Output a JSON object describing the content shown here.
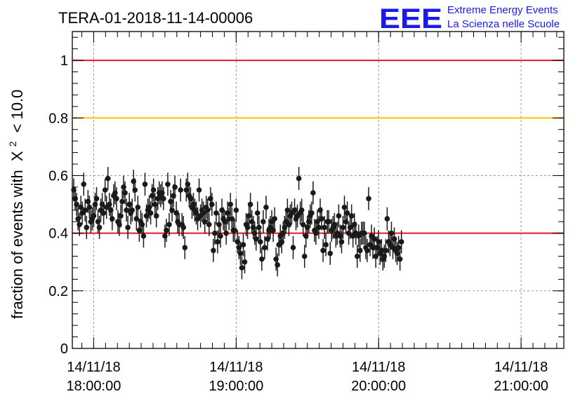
{
  "chart_data": {
    "type": "scatter",
    "title": "TERA-01-2018-11-14-00006",
    "ylabel": "fraction of events with",
    "ylabel_symbol": "X",
    "ylabel_superscript": "2",
    "ylabel_suffix": "< 10.0",
    "xlabel": "",
    "ylim": [
      0,
      1.1
    ],
    "yticks": [
      "0",
      "0.2",
      "0.4",
      "0.6",
      "0.8",
      "1"
    ],
    "ytick_values": [
      0,
      0.2,
      0.4,
      0.6,
      0.8,
      1.0
    ],
    "xlim_hours": [
      17.85,
      21.3
    ],
    "xticks": [
      {
        "date": "14/11/18",
        "time": "18:00:00",
        "hour": 18.0
      },
      {
        "date": "14/11/18",
        "time": "19:00:00",
        "hour": 19.0
      },
      {
        "date": "14/11/18",
        "time": "20:00:00",
        "hour": 20.0
      },
      {
        "date": "14/11/18",
        "time": "21:00:00",
        "hour": 21.0
      }
    ],
    "reference_lines": [
      {
        "y": 1.0,
        "color": "#e41a1c"
      },
      {
        "y": 0.8,
        "color": "#ffc000"
      },
      {
        "y": 0.4,
        "color": "#e41a1c"
      }
    ],
    "grid": true,
    "error_bar": 0.04,
    "series": [
      {
        "name": "fraction",
        "x_start_hour": 17.86,
        "x_step_hour": 0.01,
        "values": [
          0.55,
          0.52,
          0.5,
          0.45,
          0.43,
          0.49,
          0.47,
          0.57,
          0.48,
          0.42,
          0.51,
          0.49,
          0.44,
          0.45,
          0.46,
          0.5,
          0.52,
          0.44,
          0.42,
          0.48,
          0.5,
          0.47,
          0.55,
          0.49,
          0.59,
          0.5,
          0.48,
          0.45,
          0.53,
          0.54,
          0.52,
          0.44,
          0.43,
          0.46,
          0.51,
          0.56,
          0.54,
          0.48,
          0.42,
          0.5,
          0.47,
          0.48,
          0.58,
          0.55,
          0.45,
          0.49,
          0.41,
          0.44,
          0.43,
          0.39,
          0.57,
          0.46,
          0.48,
          0.49,
          0.47,
          0.53,
          0.55,
          0.5,
          0.46,
          0.52,
          0.54,
          0.53,
          0.54,
          0.52,
          0.39,
          0.41,
          0.57,
          0.43,
          0.51,
          0.48,
          0.53,
          0.56,
          0.47,
          0.44,
          0.43,
          0.55,
          0.43,
          0.42,
          0.35,
          0.55,
          0.57,
          0.53,
          0.52,
          0.49,
          0.5,
          0.48,
          0.47,
          0.45,
          0.55,
          0.46,
          0.48,
          0.47,
          0.44,
          0.49,
          0.48,
          0.43,
          0.52,
          0.5,
          0.34,
          0.4,
          0.47,
          0.37,
          0.43,
          0.39,
          0.48,
          0.45,
          0.44,
          0.4,
          0.47,
          0.45,
          0.5,
          0.45,
          0.41,
          0.41,
          0.48,
          0.37,
          0.35,
          0.33,
          0.28,
          0.36,
          0.3,
          0.43,
          0.42,
          0.46,
          0.5,
          0.44,
          0.42,
          0.4,
          0.38,
          0.47,
          0.42,
          0.37,
          0.31,
          0.44,
          0.35,
          0.49,
          0.38,
          0.41,
          0.42,
          0.44,
          0.41,
          0.45,
          0.31,
          0.29,
          0.36,
          0.39,
          0.37,
          0.4,
          0.42,
          0.44,
          0.48,
          0.43,
          0.46,
          0.47,
          0.35,
          0.48,
          0.45,
          0.46,
          0.59,
          0.47,
          0.48,
          0.43,
          0.32,
          0.39,
          0.42,
          0.44,
          0.46,
          0.47,
          0.54,
          0.41,
          0.4,
          0.44,
          0.42,
          0.48,
          0.45,
          0.34,
          0.42,
          0.36,
          0.44,
          0.44,
          0.33,
          0.41,
          0.42,
          0.43,
          0.39,
          0.4,
          0.46,
          0.39,
          0.37,
          0.42,
          0.49,
          0.44,
          0.47,
          0.4,
          0.42,
          0.46,
          0.39,
          0.43,
          0.4,
          0.32,
          0.39,
          0.34,
          0.4,
          0.4,
          0.4,
          0.35,
          0.34,
          0.52,
          0.36,
          0.39,
          0.35,
          0.38,
          0.32,
          0.35,
          0.37,
          0.33,
          0.34,
          0.31,
          0.32,
          0.34,
          0.45,
          0.37,
          0.36,
          0.4,
          0.35,
          0.38,
          0.34,
          0.33,
          0.35,
          0.31,
          0.37
        ]
      }
    ]
  },
  "logo": {
    "mark": "EEE",
    "line1": "Extreme Energy Events",
    "line2": "La Scienza nelle Scuole"
  },
  "colors": {
    "marker": "#1a1a1a",
    "grid": "#999999",
    "logo": "#1a1aee"
  }
}
